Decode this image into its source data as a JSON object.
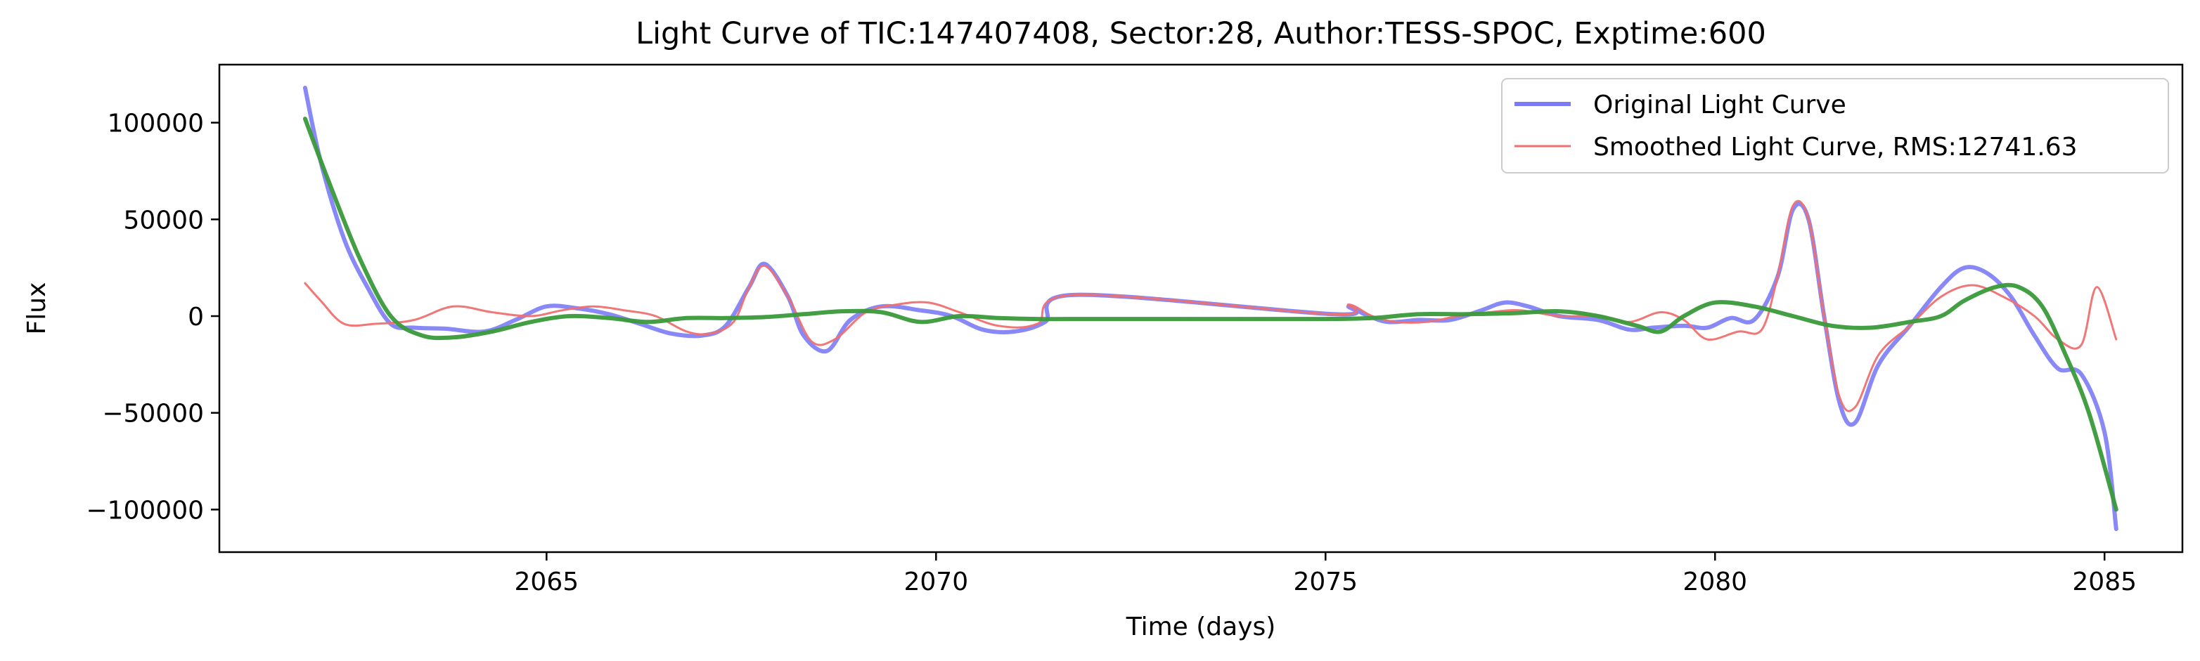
{
  "chart_data": {
    "type": "line",
    "title": "Light Curve of TIC:147407408, Sector:28, Author:TESS-SPOC, Exptime:600",
    "xlabel": "Time (days)",
    "ylabel": "Flux",
    "xlim": [
      2060.8,
      2086.0
    ],
    "ylim": [
      -122000,
      130000
    ],
    "xticks": [
      2065,
      2070,
      2075,
      2080,
      2085
    ],
    "xtick_labels": [
      "2065",
      "2070",
      "2075",
      "2080",
      "2085"
    ],
    "yticks": [
      -100000,
      -50000,
      0,
      50000,
      100000
    ],
    "ytick_labels": [
      "−100000",
      "−50000",
      "0",
      "50000",
      "100000"
    ],
    "grid": false,
    "legend": {
      "placement": "upper right",
      "entries": [
        "Original Light Curve",
        "Smoothed Light Curve, RMS:12741.63"
      ]
    },
    "series": [
      {
        "name": "Original Light Curve",
        "color": "#7b7bf5",
        "x": [
          2061.9,
          2062.1,
          2062.4,
          2062.7,
          2063.0,
          2063.3,
          2063.7,
          2064.2,
          2064.6,
          2065.0,
          2065.4,
          2065.8,
          2066.2,
          2066.6,
          2067.0,
          2067.3,
          2067.6,
          2067.8,
          2068.1,
          2068.3,
          2068.6,
          2068.9,
          2069.3,
          2069.8,
          2070.2,
          2070.6,
          2071.0,
          2071.4,
          2071.8,
          2075.1,
          2075.3,
          2075.5,
          2075.8,
          2076.2,
          2076.6,
          2077.0,
          2077.3,
          2077.6,
          2078.0,
          2078.5,
          2078.9,
          2079.2,
          2079.6,
          2079.9,
          2080.2,
          2080.5,
          2080.8,
          2081.0,
          2081.2,
          2081.4,
          2081.6,
          2081.8,
          2082.1,
          2082.5,
          2082.9,
          2083.2,
          2083.5,
          2083.8,
          2084.1,
          2084.4,
          2084.7,
          2085.0,
          2085.15
        ],
        "y": [
          118000,
          80000,
          40000,
          15000,
          -4000,
          -6000,
          -6500,
          -8000,
          -2000,
          5000,
          4000,
          1000,
          -4000,
          -9000,
          -10000,
          -5000,
          15000,
          27000,
          10000,
          -10000,
          -18000,
          -2000,
          5000,
          3000,
          0,
          -7000,
          -8000,
          -3000,
          11000,
          1000,
          5000,
          1000,
          -3000,
          -2000,
          -2000,
          3000,
          7000,
          5000,
          0,
          -2000,
          -7000,
          -6000,
          -5000,
          -6000,
          -1000,
          -2000,
          20000,
          55000,
          50000,
          0,
          -45000,
          -55000,
          -25000,
          -5000,
          15000,
          25000,
          22000,
          10000,
          -10000,
          -27000,
          -30000,
          -60000,
          -110000
        ]
      },
      {
        "name": "Smoothed Light Curve, RMS:12741.63",
        "color": "#f07070",
        "x": [
          2061.9,
          2062.1,
          2062.4,
          2062.8,
          2063.3,
          2063.8,
          2064.3,
          2064.8,
          2065.2,
          2065.6,
          2066.0,
          2066.4,
          2066.8,
          2067.1,
          2067.4,
          2067.6,
          2067.8,
          2068.1,
          2068.4,
          2068.7,
          2069.1,
          2069.5,
          2069.9,
          2070.3,
          2070.8,
          2071.3,
          2071.8,
          2075.1,
          2075.3,
          2075.6,
          2075.9,
          2076.3,
          2076.7,
          2077.1,
          2077.5,
          2078.0,
          2078.5,
          2078.9,
          2079.3,
          2079.6,
          2079.9,
          2080.3,
          2080.6,
          2080.8,
          2081.0,
          2081.2,
          2081.4,
          2081.6,
          2081.8,
          2082.1,
          2082.5,
          2082.9,
          2083.3,
          2083.7,
          2084.1,
          2084.4,
          2084.7,
          2084.9,
          2085.15
        ],
        "y": [
          17000,
          8000,
          -4000,
          -4000,
          -2000,
          5000,
          2000,
          0,
          3000,
          5000,
          3000,
          0,
          -8000,
          -9000,
          -3000,
          15000,
          26000,
          10000,
          -13000,
          -12000,
          2000,
          6000,
          7000,
          2000,
          -5000,
          -4000,
          11000,
          1000,
          6000,
          0,
          -3000,
          -3000,
          0,
          2000,
          3000,
          0,
          0,
          -3000,
          2000,
          -2000,
          -12000,
          -8000,
          -7000,
          20000,
          57000,
          50000,
          0,
          -42000,
          -47000,
          -20000,
          -5000,
          10000,
          16000,
          10000,
          0,
          -12000,
          -15000,
          15000,
          -12000
        ]
      },
      {
        "name": "",
        "color": "#3a9a3a",
        "x": [
          2061.9,
          2062.2,
          2062.6,
          2063.0,
          2063.4,
          2063.8,
          2064.3,
          2064.8,
          2065.3,
          2065.8,
          2066.3,
          2066.8,
          2067.3,
          2067.8,
          2068.3,
          2068.8,
          2069.3,
          2069.8,
          2070.3,
          2070.8,
          2071.3,
          2072.0,
          2073.0,
          2074.0,
          2075.0,
          2075.6,
          2076.2,
          2076.8,
          2077.4,
          2078.0,
          2078.5,
          2079.0,
          2079.3,
          2079.6,
          2080.0,
          2080.5,
          2081.0,
          2081.5,
          2082.0,
          2082.5,
          2082.9,
          2083.2,
          2083.6,
          2083.9,
          2084.2,
          2084.5,
          2084.8,
          2085.15
        ],
        "y": [
          102000,
          70000,
          30000,
          0,
          -10000,
          -11000,
          -8000,
          -3000,
          0,
          -1000,
          -3000,
          -1000,
          -1000,
          -500,
          1000,
          2500,
          2000,
          -3000,
          0,
          -1000,
          -1500,
          -1500,
          -1500,
          -1500,
          -1500,
          -1000,
          1000,
          1000,
          1500,
          2500,
          0,
          -5000,
          -8000,
          0,
          7000,
          5000,
          0,
          -5000,
          -6000,
          -3000,
          0,
          8000,
          15000,
          15000,
          5000,
          -20000,
          -50000,
          -100000
        ]
      }
    ]
  }
}
